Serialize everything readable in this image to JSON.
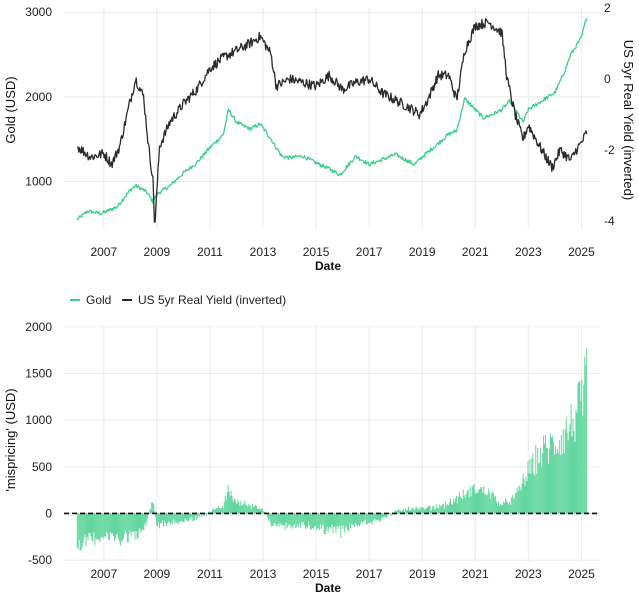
{
  "colors": {
    "gold": "#3ecf8e",
    "yield": "#2b2b2e",
    "bars": "#57d397",
    "zero_line": "#111111",
    "grid": "#ebebeb"
  },
  "chart_data": [
    {
      "type": "line",
      "xlabel": "Date",
      "ylabel": "Gold (USD)",
      "ylabel_right": "US 5yr Real Yield (inverted)",
      "x_ticks": [
        "2007",
        "2009",
        "2011",
        "2013",
        "2015",
        "2017",
        "2019",
        "2021",
        "2023",
        "2025"
      ],
      "y_ticks_left": [
        "1000",
        "2000",
        "3000"
      ],
      "y_ticks_right": [
        "2",
        "0",
        "-2",
        "-4"
      ],
      "xlim": [
        2005.5,
        2025.7
      ],
      "ylim_left": [
        450,
        3050
      ],
      "ylim_right_inverted": [
        2.0,
        -4.2
      ],
      "grid": true,
      "series": [
        {
          "name": "Gold",
          "axis": "left",
          "x": [
            2006.0,
            2006.4,
            2006.9,
            2007.5,
            2008.0,
            2008.2,
            2008.6,
            2008.85,
            2009.0,
            2009.5,
            2010.0,
            2010.5,
            2011.0,
            2011.5,
            2011.7,
            2012.0,
            2012.5,
            2012.9,
            2013.3,
            2013.7,
            2014.0,
            2014.5,
            2015.0,
            2015.5,
            2015.9,
            2016.5,
            2017.0,
            2017.5,
            2018.0,
            2018.7,
            2019.0,
            2019.5,
            2020.0,
            2020.3,
            2020.6,
            2021.0,
            2021.3,
            2021.7,
            2022.0,
            2022.3,
            2022.8,
            2023.0,
            2023.5,
            2024.0,
            2024.3,
            2024.6,
            2025.0,
            2025.2
          ],
          "values": [
            550,
            650,
            620,
            700,
            900,
            950,
            880,
            760,
            850,
            950,
            1100,
            1220,
            1400,
            1550,
            1850,
            1700,
            1620,
            1680,
            1500,
            1300,
            1280,
            1300,
            1220,
            1150,
            1080,
            1300,
            1200,
            1260,
            1320,
            1200,
            1290,
            1420,
            1560,
            1600,
            1980,
            1850,
            1750,
            1800,
            1850,
            1950,
            1700,
            1850,
            1950,
            2050,
            2250,
            2500,
            2700,
            2950
          ]
        },
        {
          "name": "US 5yr Real Yield (inverted)",
          "axis": "right",
          "x": [
            2006.0,
            2006.5,
            2007.0,
            2007.3,
            2007.6,
            2008.0,
            2008.2,
            2008.5,
            2008.7,
            2008.85,
            2008.92,
            2009.1,
            2009.5,
            2010.0,
            2010.5,
            2011.0,
            2011.5,
            2012.0,
            2012.5,
            2012.9,
            2013.3,
            2013.5,
            2014.0,
            2014.5,
            2015.0,
            2015.5,
            2016.0,
            2016.5,
            2017.0,
            2017.5,
            2018.0,
            2018.5,
            2018.9,
            2019.2,
            2019.6,
            2020.0,
            2020.3,
            2020.6,
            2021.0,
            2021.5,
            2022.0,
            2022.2,
            2022.5,
            2022.8,
            2023.0,
            2023.5,
            2023.9,
            2024.2,
            2024.6,
            2024.8,
            2025.0,
            2025.2
          ],
          "values": [
            -1.9,
            -2.2,
            -2.1,
            -2.4,
            -1.9,
            -0.6,
            0.0,
            -0.5,
            -2.0,
            -2.8,
            -4.2,
            -1.9,
            -1.2,
            -0.7,
            -0.3,
            0.3,
            0.6,
            0.8,
            1.0,
            1.2,
            0.7,
            -0.2,
            0.0,
            -0.1,
            -0.2,
            0.1,
            -0.3,
            -0.1,
            0.0,
            -0.4,
            -0.6,
            -0.8,
            -1.0,
            -0.6,
            0.1,
            0.1,
            -0.6,
            0.8,
            1.5,
            1.6,
            1.3,
            0.0,
            -1.0,
            -1.7,
            -1.3,
            -2.0,
            -2.5,
            -2.0,
            -2.3,
            -2.0,
            -1.8,
            -1.5
          ]
        }
      ]
    },
    {
      "type": "bar",
      "xlabel": "Date",
      "ylabel": "'mispricing' (USD)",
      "x_ticks": [
        "2007",
        "2009",
        "2011",
        "2013",
        "2015",
        "2017",
        "2019",
        "2021",
        "2023",
        "2025"
      ],
      "y_ticks": [
        "-500",
        "0",
        "500",
        "1000",
        "1500",
        "2000"
      ],
      "xlim": [
        2005.5,
        2025.7
      ],
      "ylim": [
        -520,
        2020
      ],
      "grid": true,
      "zero_line": "dashed",
      "x": [
        2006.0,
        2006.5,
        2007.0,
        2007.5,
        2008.0,
        2008.5,
        2008.85,
        2009.0,
        2009.5,
        2010.0,
        2010.5,
        2011.0,
        2011.5,
        2011.7,
        2012.0,
        2012.5,
        2013.0,
        2013.3,
        2013.7,
        2014.0,
        2014.5,
        2015.0,
        2015.5,
        2016.0,
        2016.5,
        2017.0,
        2017.5,
        2018.0,
        2018.5,
        2019.0,
        2019.5,
        2020.0,
        2020.5,
        2021.0,
        2021.5,
        2022.0,
        2022.5,
        2023.0,
        2023.5,
        2024.0,
        2024.5,
        2025.0,
        2025.2
      ],
      "values": [
        -420,
        -350,
        -310,
        -340,
        -300,
        -260,
        200,
        -150,
        -130,
        -110,
        -60,
        20,
        100,
        330,
        150,
        120,
        70,
        -150,
        -170,
        -180,
        -170,
        -200,
        -220,
        -250,
        -150,
        -120,
        -70,
        20,
        70,
        60,
        90,
        140,
        240,
        340,
        300,
        120,
        220,
        580,
        840,
        960,
        1150,
        1500,
        1800
      ]
    }
  ],
  "legend": {
    "items": [
      "Gold",
      "US 5yr Real Yield (inverted)"
    ]
  }
}
